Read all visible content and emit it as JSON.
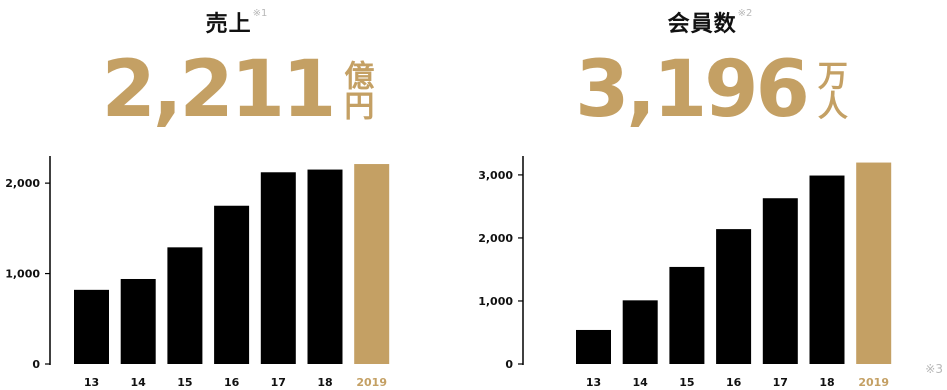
{
  "sales": {
    "label": "売上",
    "note": "※1",
    "value": "2,211",
    "unit": "億円"
  },
  "members": {
    "label": "会員数",
    "note": "※2",
    "value": "3,196",
    "unit": "万人"
  },
  "footnote": "※3",
  "colors": {
    "bar": "#000000",
    "highlight": "#c4a064",
    "axis": "#000000",
    "note": "#b8b8b8"
  },
  "chart_data": [
    {
      "type": "bar",
      "categories": [
        "13",
        "14",
        "15",
        "16",
        "17",
        "18",
        "2019"
      ],
      "values": [
        820,
        940,
        1290,
        1750,
        2120,
        2150,
        2211
      ],
      "highlight_index": 6,
      "yticks": [
        0,
        1000,
        2000
      ],
      "ytick_labels": [
        "0",
        "1,000",
        "2,000"
      ],
      "ylim": [
        0,
        2300
      ],
      "title": "",
      "xlabel": "",
      "ylabel": "",
      "grid": false
    },
    {
      "type": "bar",
      "categories": [
        "13",
        "14",
        "15",
        "16",
        "17",
        "18",
        "2019"
      ],
      "values": [
        540,
        1010,
        1540,
        2140,
        2630,
        2990,
        3196
      ],
      "highlight_index": 6,
      "yticks": [
        0,
        1000,
        2000,
        3000
      ],
      "ytick_labels": [
        "0",
        "1,000",
        "2,000",
        "3,000"
      ],
      "ylim": [
        0,
        3300
      ],
      "title": "",
      "xlabel": "",
      "ylabel": "",
      "grid": false
    }
  ]
}
